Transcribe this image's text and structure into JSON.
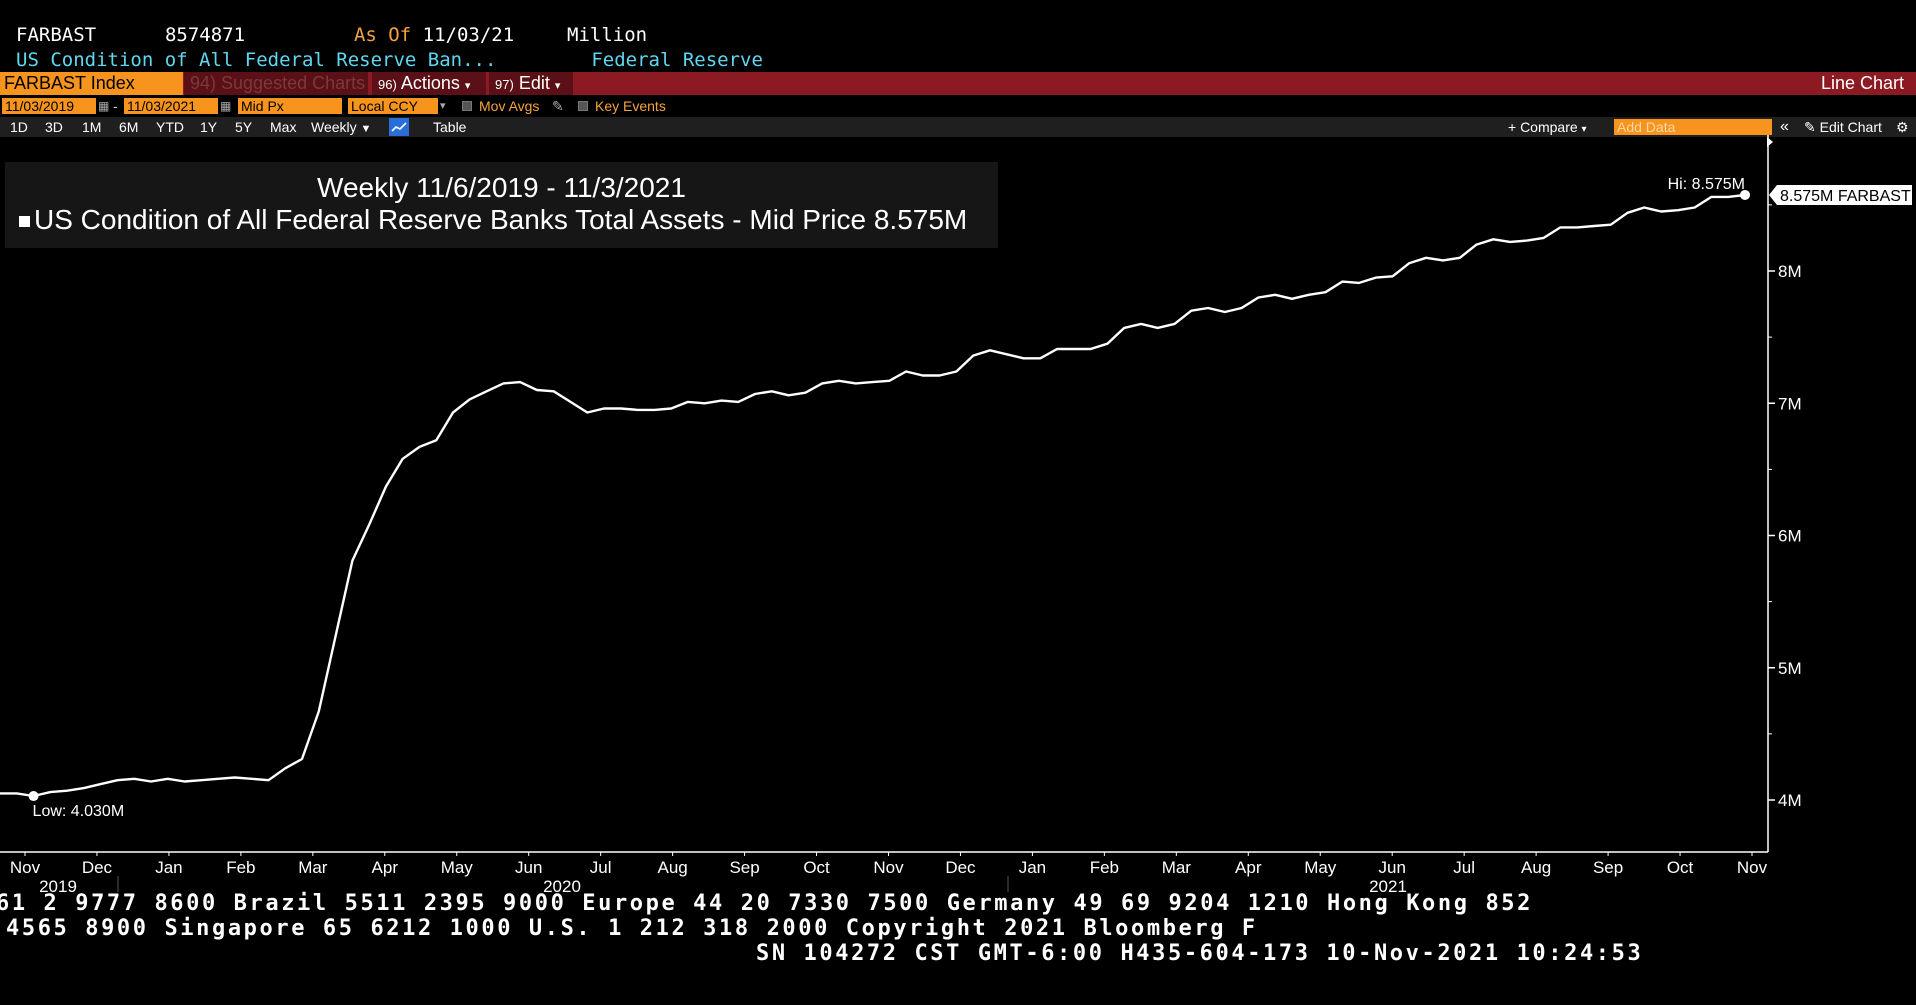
{
  "header": {
    "ticker": "FARBAST",
    "value": "8574871",
    "as_of_label": "As Of",
    "as_of_date": "11/03/21",
    "unit": "Million",
    "description": "US Condition of All Federal Reserve Ban...",
    "source": "Federal Reserve"
  },
  "menu": {
    "security": "FARBAST Index",
    "suggested": "94) Suggested Charts",
    "actions_num": "96)",
    "actions": "Actions",
    "edit_num": "97)",
    "edit": "Edit",
    "chart_type": "Line Chart"
  },
  "toolbar": {
    "start_date": "11/03/2019",
    "end_date": "11/03/2021",
    "price_field": "Mid Px",
    "currency": "Local CCY",
    "mov_avgs": "Mov Avgs",
    "key_events": "Key Events",
    "ranges": [
      "1D",
      "3D",
      "1M",
      "6M",
      "YTD",
      "1Y",
      "5Y",
      "Max"
    ],
    "frequency": "Weekly",
    "table": "Table",
    "compare": "+ Compare",
    "add_data_placeholder": "Add Data",
    "edit_chart": "Edit Chart"
  },
  "legend": {
    "line1": "Weekly 11/6/2019 - 11/3/2021",
    "line2": "US Condition of All Federal Reserve Banks Total Assets - Mid Price",
    "line2_value": "8.575M"
  },
  "chart_data": {
    "type": "line",
    "ylim": [
      3.55,
      8.95
    ],
    "yticks": [
      4,
      5,
      6,
      7,
      8
    ],
    "ytick_labels": [
      "4M",
      "5M",
      "6M",
      "7M",
      "8M"
    ],
    "months": [
      "Nov",
      "Dec",
      "Jan",
      "Feb",
      "Mar",
      "Apr",
      "May",
      "Jun",
      "Jul",
      "Aug",
      "Sep",
      "Oct",
      "Nov",
      "Dec",
      "Jan",
      "Feb",
      "Mar",
      "Apr",
      "May",
      "Jun",
      "Jul",
      "Aug",
      "Sep",
      "Oct",
      "Nov"
    ],
    "years": [
      "2019",
      "2020",
      "2021"
    ],
    "low_label": "Low: 4.030M",
    "high_label": "Hi: 8.575M",
    "last_label": "8.575M FARBAST",
    "series": [
      {
        "values": [
          4.05,
          4.05,
          4.03,
          4.06,
          4.07,
          4.09,
          4.12,
          4.15,
          4.16,
          4.14,
          4.16,
          4.14,
          4.15,
          4.16,
          4.17,
          4.16,
          4.15,
          4.24,
          4.31,
          4.67,
          5.24,
          5.81,
          6.08,
          6.37,
          6.58,
          6.67,
          6.72,
          6.93,
          7.03,
          7.09,
          7.15,
          7.16,
          7.1,
          7.09,
          7.01,
          6.93,
          6.96,
          6.96,
          6.95,
          6.95,
          6.96,
          7.01,
          7.0,
          7.02,
          7.01,
          7.07,
          7.09,
          7.06,
          7.08,
          7.15,
          7.17,
          7.15,
          7.16,
          7.17,
          7.24,
          7.21,
          7.21,
          7.24,
          7.36,
          7.4,
          7.37,
          7.34,
          7.34,
          7.41,
          7.41,
          7.41,
          7.45,
          7.57,
          7.6,
          7.57,
          7.6,
          7.7,
          7.72,
          7.69,
          7.72,
          7.8,
          7.82,
          7.79,
          7.82,
          7.84,
          7.92,
          7.91,
          7.95,
          7.96,
          8.06,
          8.1,
          8.08,
          8.1,
          8.2,
          8.24,
          8.22,
          8.23,
          8.25,
          8.33,
          8.33,
          8.34,
          8.35,
          8.44,
          8.48,
          8.45,
          8.46,
          8.48,
          8.56,
          8.56,
          8.575
        ]
      }
    ]
  }
}
